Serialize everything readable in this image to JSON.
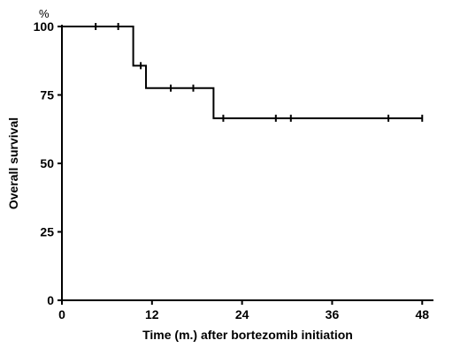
{
  "chart_data": {
    "type": "line",
    "title": "",
    "xlabel": "Time (m.) after bortezomib initiation",
    "ylabel": "Overall survival",
    "yunit": "%",
    "xlim": [
      0,
      49.5
    ],
    "ylim": [
      0,
      100
    ],
    "xticks": [
      0,
      12,
      24,
      36,
      48
    ],
    "yticks": [
      0,
      25,
      50,
      75,
      100
    ],
    "grid": false,
    "series": [
      {
        "steps": [
          {
            "x": 0,
            "y": 100
          },
          {
            "x": 9.5,
            "y": 85.7
          },
          {
            "x": 11.2,
            "y": 77.5
          },
          {
            "x": 20.2,
            "y": 66.5
          },
          {
            "x": 48,
            "y": 66.5
          }
        ],
        "censored": [
          {
            "x": 4.5,
            "y": 100
          },
          {
            "x": 7.5,
            "y": 100
          },
          {
            "x": 10.5,
            "y": 85.7
          },
          {
            "x": 14.5,
            "y": 77.5
          },
          {
            "x": 17.5,
            "y": 77.5
          },
          {
            "x": 21.5,
            "y": 66.5
          },
          {
            "x": 28.5,
            "y": 66.5
          },
          {
            "x": 30.5,
            "y": 66.5
          },
          {
            "x": 43.5,
            "y": 66.5
          },
          {
            "x": 48,
            "y": 66.5
          }
        ]
      }
    ]
  },
  "colors": {
    "line": "#000000",
    "axis": "#000000"
  }
}
